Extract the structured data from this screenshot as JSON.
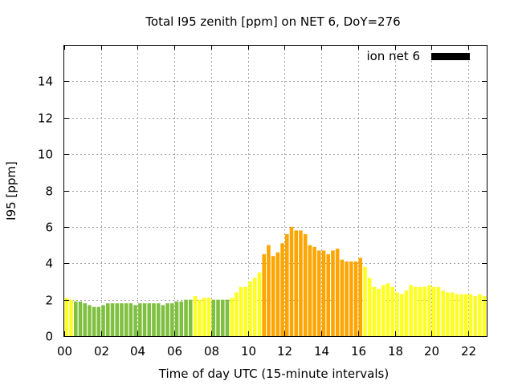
{
  "chart_data": {
    "type": "bar",
    "title": "Total I95 zenith [ppm] on NET 6, DoY=276",
    "xlabel": "Time of day UTC (15-minute intervals)",
    "ylabel": "I95 [ppm]",
    "xlim": [
      0,
      23
    ],
    "ylim": [
      0,
      16
    ],
    "grid": true,
    "legend_position": "top-right",
    "x_ticks": [
      {
        "value": 0,
        "label": "00"
      },
      {
        "value": 2,
        "label": "02"
      },
      {
        "value": 4,
        "label": "04"
      },
      {
        "value": 6,
        "label": "06"
      },
      {
        "value": 8,
        "label": "08"
      },
      {
        "value": 10,
        "label": "10"
      },
      {
        "value": 12,
        "label": "12"
      },
      {
        "value": 14,
        "label": "14"
      },
      {
        "value": 16,
        "label": "16"
      },
      {
        "value": 18,
        "label": "18"
      },
      {
        "value": 20,
        "label": "20"
      },
      {
        "value": 22,
        "label": "22"
      }
    ],
    "y_ticks": [
      {
        "value": 0,
        "label": "0"
      },
      {
        "value": 2,
        "label": "2"
      },
      {
        "value": 4,
        "label": "4"
      },
      {
        "value": 6,
        "label": "6"
      },
      {
        "value": 8,
        "label": "8"
      },
      {
        "value": 10,
        "label": "10"
      },
      {
        "value": 12,
        "label": "12"
      },
      {
        "value": 14,
        "label": "14"
      }
    ],
    "series": [
      {
        "name": "ion net 6",
        "legend_color": "#000000",
        "bar_width_hours": 0.2,
        "x": [
          0.0,
          0.25,
          0.5,
          0.75,
          1.0,
          1.25,
          1.5,
          1.75,
          2.0,
          2.25,
          2.5,
          2.75,
          3.0,
          3.25,
          3.5,
          3.75,
          4.0,
          4.25,
          4.5,
          4.75,
          5.0,
          5.25,
          5.5,
          5.75,
          6.0,
          6.25,
          6.5,
          6.75,
          7.0,
          7.25,
          7.5,
          7.75,
          8.0,
          8.25,
          8.5,
          8.75,
          9.0,
          9.25,
          9.5,
          9.75,
          10.0,
          10.25,
          10.5,
          10.75,
          11.0,
          11.25,
          11.5,
          11.75,
          12.0,
          12.25,
          12.5,
          12.75,
          13.0,
          13.25,
          13.5,
          13.75,
          14.0,
          14.25,
          14.5,
          14.75,
          15.0,
          15.25,
          15.5,
          15.75,
          16.0,
          16.25,
          16.5,
          16.75,
          17.0,
          17.25,
          17.5,
          17.75,
          18.0,
          18.25,
          18.5,
          18.75,
          19.0,
          19.25,
          19.5,
          19.75,
          20.0,
          20.25,
          20.5,
          20.75,
          21.0,
          21.25,
          21.5,
          21.75,
          22.0,
          22.25,
          22.5,
          22.75
        ],
        "values": [
          2.1,
          2.0,
          1.9,
          1.9,
          1.8,
          1.7,
          1.6,
          1.6,
          1.7,
          1.8,
          1.8,
          1.8,
          1.8,
          1.8,
          1.8,
          1.7,
          1.8,
          1.8,
          1.8,
          1.8,
          1.8,
          1.7,
          1.8,
          1.8,
          1.9,
          1.9,
          2.0,
          2.0,
          2.2,
          2.0,
          2.1,
          2.1,
          2.0,
          2.0,
          2.0,
          2.0,
          2.1,
          2.4,
          2.7,
          2.7,
          3.0,
          3.2,
          3.5,
          4.5,
          5.0,
          4.4,
          4.6,
          5.1,
          5.6,
          6.0,
          5.8,
          5.8,
          5.6,
          5.0,
          4.9,
          4.7,
          4.7,
          4.5,
          4.7,
          4.8,
          4.2,
          4.1,
          4.1,
          4.1,
          4.3,
          3.8,
          3.2,
          2.7,
          2.6,
          2.8,
          2.9,
          2.7,
          2.4,
          2.3,
          2.5,
          2.8,
          2.7,
          2.7,
          2.7,
          2.8,
          2.7,
          2.7,
          2.5,
          2.4,
          2.4,
          2.3,
          2.3,
          2.3,
          2.3,
          2.2,
          2.3,
          2.2
        ],
        "colors": [
          "#ffff22",
          "#ffff22",
          "#80c040",
          "#80c040",
          "#80c040",
          "#80c040",
          "#80c040",
          "#80c040",
          "#80c040",
          "#80c040",
          "#80c040",
          "#80c040",
          "#80c040",
          "#80c040",
          "#80c040",
          "#80c040",
          "#80c040",
          "#80c040",
          "#80c040",
          "#80c040",
          "#80c040",
          "#80c040",
          "#80c040",
          "#80c040",
          "#80c040",
          "#80c040",
          "#80c040",
          "#80c040",
          "#ffff22",
          "#ffff22",
          "#ffff22",
          "#ffff22",
          "#80c040",
          "#80c040",
          "#80c040",
          "#80c040",
          "#ffff22",
          "#ffff22",
          "#ffff22",
          "#ffff22",
          "#ffff22",
          "#ffff22",
          "#ffff22",
          "#ffa500",
          "#ffa500",
          "#ffa500",
          "#ffa500",
          "#ffa500",
          "#ffa500",
          "#ffa500",
          "#ffa500",
          "#ffa500",
          "#ffa500",
          "#ffa500",
          "#ffa500",
          "#ffa500",
          "#ffa500",
          "#ffa500",
          "#ffa500",
          "#ffa500",
          "#ffa500",
          "#ffa500",
          "#ffa500",
          "#ffa500",
          "#ffa500",
          "#ffff22",
          "#ffff22",
          "#ffff22",
          "#ffff22",
          "#ffff22",
          "#ffff22",
          "#ffff22",
          "#ffff22",
          "#ffff22",
          "#ffff22",
          "#ffff22",
          "#ffff22",
          "#ffff22",
          "#ffff22",
          "#ffff22",
          "#ffff22",
          "#ffff22",
          "#ffff22",
          "#ffff22",
          "#ffff22",
          "#ffff22",
          "#ffff22",
          "#ffff22",
          "#ffff22",
          "#ffff22",
          "#ffff22",
          "#ffff22"
        ]
      }
    ]
  }
}
